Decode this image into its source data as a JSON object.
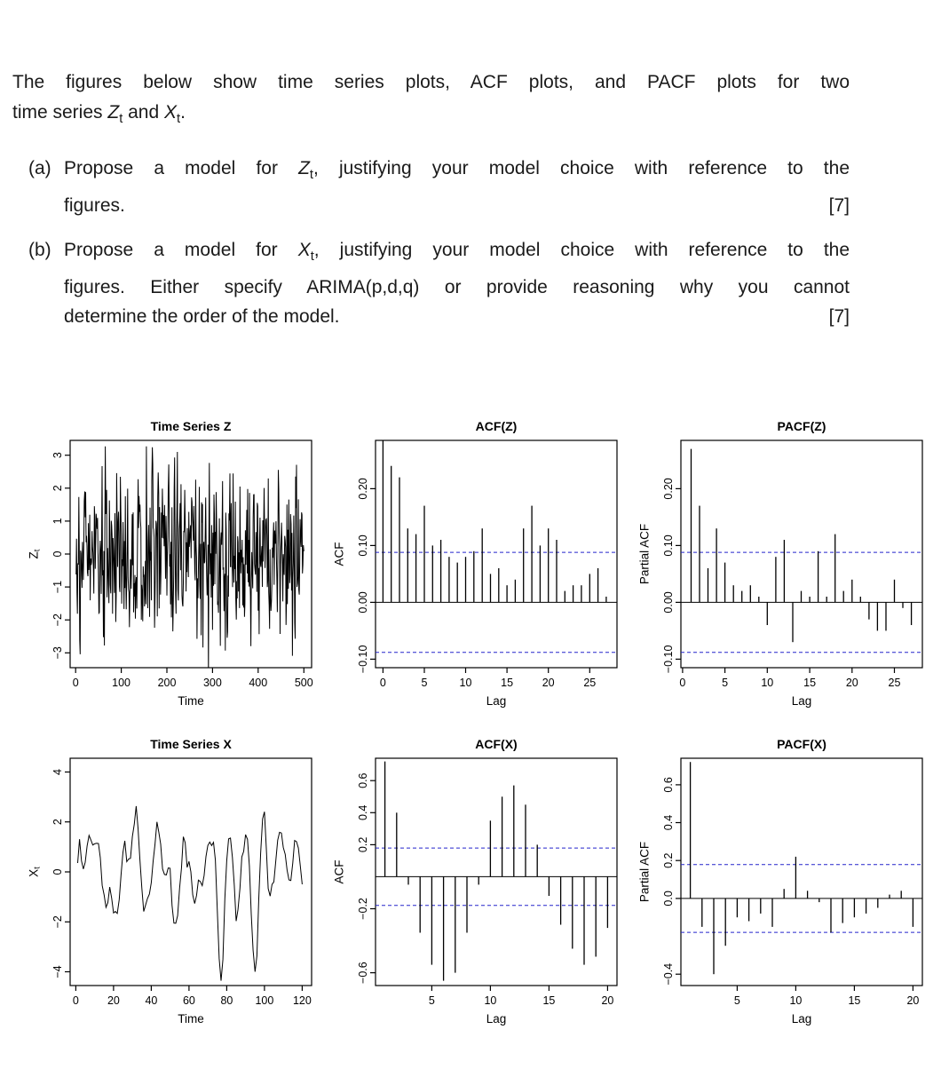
{
  "question": {
    "intro": "The figures below show time series plots, ACF plots, and PACF plots for two{br}time series {Zt} and {Xt}.",
    "items": [
      {
        "label": "(a)",
        "text": "Propose a model for {Zt}, justifying your model choice with reference to the{br}figures.",
        "marks": "[7]"
      },
      {
        "label": "(b)",
        "text": "Propose a model for {Xt}, justifying your model choice with reference to the{br}figures. Either specify ARIMA(p,d,q) or provide reasoning why you cannot{br}determine the order of the model.",
        "marks": "[7]"
      }
    ]
  },
  "styles": {
    "conf_color": "#2424cc",
    "line_color": "#000000"
  },
  "chart_data": [
    {
      "id": "ts-z",
      "type": "line",
      "title": "Time Series Z",
      "xlabel": "Time",
      "ylabel": {
        "main": "Z",
        "sub": "t"
      },
      "xlim": [
        -12,
        517
      ],
      "ylim": [
        -3.45,
        3.45
      ],
      "xticks": [
        [
          0,
          "0"
        ],
        [
          100,
          "100"
        ],
        [
          200,
          "200"
        ],
        [
          300,
          "300"
        ],
        [
          400,
          "400"
        ],
        [
          500,
          "500"
        ]
      ],
      "yticks": [
        [
          -3,
          "−3"
        ],
        [
          -2,
          "−2"
        ],
        [
          -1,
          "−1"
        ],
        [
          0,
          "0"
        ],
        [
          1,
          "1"
        ],
        [
          2,
          "2"
        ],
        [
          3,
          "3"
        ]
      ],
      "generator": {
        "phi": [
          0.3
        ],
        "n": 500,
        "seed": 20,
        "amp": 3.1
      }
    },
    {
      "id": "acf-z",
      "type": "acf",
      "title": "ACF(Z)",
      "xlabel": "Lag",
      "ylabel": "ACF",
      "xlim": [
        -0.9,
        28.3
      ],
      "ylim": [
        -0.115,
        0.285
      ],
      "xticks": [
        [
          0,
          "0"
        ],
        [
          5,
          "5"
        ],
        [
          10,
          "10"
        ],
        [
          15,
          "15"
        ],
        [
          20,
          "20"
        ],
        [
          25,
          "25"
        ]
      ],
      "yticks": [
        [
          -0.1,
          "−0.10"
        ],
        [
          0,
          "0.00"
        ],
        [
          0.1,
          "0.10"
        ],
        [
          0.2,
          "0.20"
        ]
      ],
      "conf": 0.088,
      "lag_start": 0,
      "values": [
        1.0,
        0.24,
        0.22,
        0.13,
        0.12,
        0.17,
        0.1,
        0.11,
        0.08,
        0.07,
        0.08,
        0.09,
        0.13,
        0.05,
        0.06,
        0.03,
        0.04,
        0.13,
        0.17,
        0.1,
        0.13,
        0.11,
        0.02,
        0.03,
        0.03,
        0.05,
        0.06,
        0.01
      ]
    },
    {
      "id": "pacf-z",
      "type": "acf",
      "title": "PACF(Z)",
      "xlabel": "Lag",
      "ylabel": "Partial ACF",
      "xlim": [
        -0.2,
        28.3
      ],
      "ylim": [
        -0.115,
        0.285
      ],
      "xticks": [
        [
          0,
          "0"
        ],
        [
          5,
          "5"
        ],
        [
          10,
          "10"
        ],
        [
          15,
          "15"
        ],
        [
          20,
          "20"
        ],
        [
          25,
          "25"
        ]
      ],
      "yticks": [
        [
          -0.1,
          "−0.10"
        ],
        [
          0,
          "0.00"
        ],
        [
          0.1,
          "0.10"
        ],
        [
          0.2,
          "0.20"
        ]
      ],
      "conf": 0.088,
      "lag_start": 1,
      "values": [
        0.27,
        0.17,
        0.06,
        0.13,
        0.07,
        0.03,
        0.02,
        0.03,
        0.01,
        -0.04,
        0.08,
        0.11,
        -0.07,
        0.02,
        0.01,
        0.09,
        0.01,
        0.12,
        0.02,
        0.04,
        0.01,
        -0.03,
        -0.05,
        -0.05,
        0.04,
        -0.01,
        -0.04
      ]
    },
    {
      "id": "ts-x",
      "type": "line",
      "title": "Time Series X",
      "xlabel": "Time",
      "ylabel": {
        "main": "X",
        "sub": "t"
      },
      "xlim": [
        -3,
        125
      ],
      "ylim": [
        -4.55,
        4.55
      ],
      "xticks": [
        [
          0,
          "0"
        ],
        [
          20,
          "20"
        ],
        [
          40,
          "40"
        ],
        [
          60,
          "60"
        ],
        [
          80,
          "80"
        ],
        [
          100,
          "100"
        ],
        [
          120,
          "120"
        ]
      ],
      "yticks": [
        [
          -4,
          "−4"
        ],
        [
          -2,
          "−2"
        ],
        [
          0,
          "0"
        ],
        [
          2,
          "2"
        ],
        [
          4,
          "4"
        ]
      ],
      "generator": {
        "phi": [
          1.4,
          -0.75
        ],
        "n": 120,
        "seed": 9,
        "amp": 4.0
      }
    },
    {
      "id": "acf-x",
      "type": "acf",
      "title": "ACF(X)",
      "xlabel": "Lag",
      "ylabel": "ACF",
      "xlim": [
        0.2,
        20.8
      ],
      "ylim": [
        -0.68,
        0.74
      ],
      "xticks": [
        [
          5,
          "5"
        ],
        [
          10,
          "10"
        ],
        [
          15,
          "15"
        ],
        [
          20,
          "20"
        ]
      ],
      "yticks": [
        [
          0.6,
          "0.6"
        ],
        [
          0.4,
          "0.4"
        ],
        [
          0.2,
          "0.2"
        ],
        [
          -0.2,
          "−0.2"
        ],
        [
          -0.6,
          "−0.6"
        ]
      ],
      "conf": 0.179,
      "lag_start": 1,
      "values": [
        0.72,
        0.4,
        -0.05,
        -0.35,
        -0.55,
        -0.65,
        -0.6,
        -0.35,
        -0.05,
        0.35,
        0.5,
        0.57,
        0.45,
        0.2,
        -0.12,
        -0.3,
        -0.45,
        -0.55,
        -0.5,
        -0.32
      ]
    },
    {
      "id": "pacf-x",
      "type": "acf",
      "title": "PACF(X)",
      "xlabel": "Lag",
      "ylabel": "Partial ACF",
      "xlim": [
        0.2,
        20.8
      ],
      "ylim": [
        -0.46,
        0.74
      ],
      "xticks": [
        [
          5,
          "5"
        ],
        [
          10,
          "10"
        ],
        [
          15,
          "15"
        ],
        [
          20,
          "20"
        ]
      ],
      "yticks": [
        [
          0.6,
          "0.6"
        ],
        [
          0.4,
          "0.4"
        ],
        [
          0.2,
          "0.2"
        ],
        [
          0.0,
          "0.0"
        ],
        [
          -0.4,
          "−0.4"
        ]
      ],
      "conf": 0.179,
      "lag_start": 1,
      "values": [
        0.72,
        -0.15,
        -0.4,
        -0.25,
        -0.1,
        -0.12,
        -0.08,
        -0.15,
        0.05,
        0.22,
        0.04,
        -0.02,
        -0.18,
        -0.13,
        -0.1,
        -0.08,
        -0.05,
        0.02,
        0.04,
        -0.15
      ]
    }
  ]
}
